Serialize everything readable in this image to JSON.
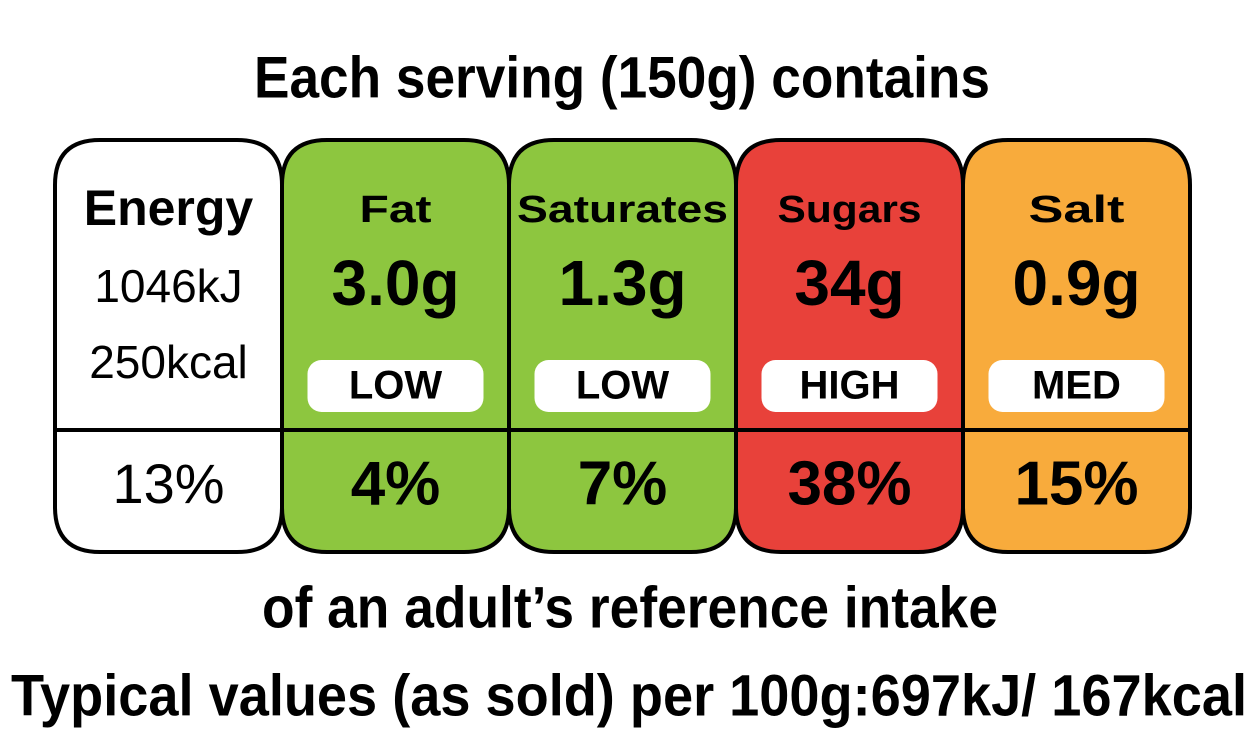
{
  "header": {
    "title": "Each serving (150g) contains"
  },
  "columns": [
    {
      "name": "Energy",
      "lines": [
        "1046kJ",
        "250kcal"
      ],
      "percent": "13%",
      "color": "#ffffff"
    },
    {
      "name": "Fat",
      "amount": "3.0g",
      "level": "LOW",
      "percent": "4%",
      "color": "#8dc63f"
    },
    {
      "name": "Saturates",
      "amount": "1.3g",
      "level": "LOW",
      "percent": "7%",
      "color": "#8dc63f"
    },
    {
      "name": "Sugars",
      "amount": "34g",
      "level": "HIGH",
      "percent": "38%",
      "color": "#e8413a"
    },
    {
      "name": "Salt",
      "amount": "0.9g",
      "level": "MED",
      "percent": "15%",
      "color": "#f8ab3c"
    }
  ],
  "footer": {
    "reference": "of an adult’s reference intake",
    "typical": "Typical values (as sold) per 100g:697kJ/ 167kcal"
  }
}
